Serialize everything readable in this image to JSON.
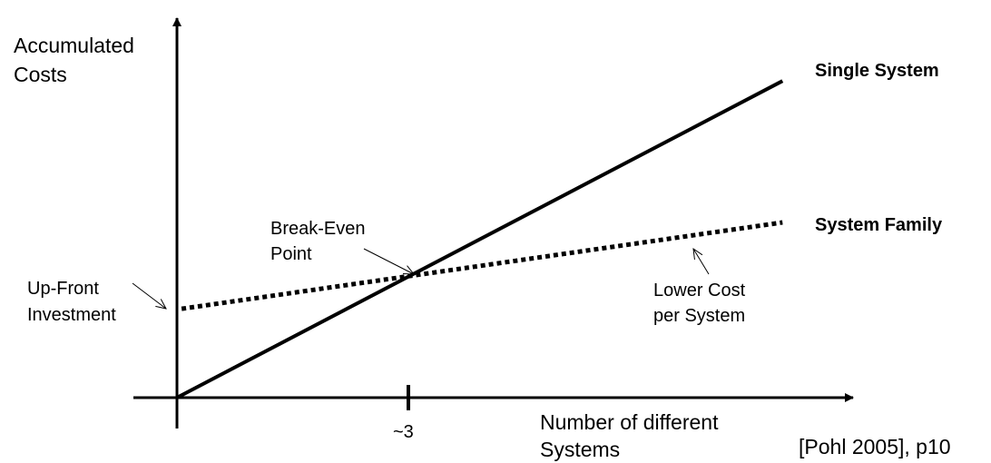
{
  "chart_data": {
    "type": "line",
    "title": "",
    "ylabel": "Accumulated Costs",
    "xlabel": "Number of different Systems",
    "x_ticks": [
      {
        "value": 3,
        "label": "~3"
      }
    ],
    "xlim": [
      -0.56,
      8.76
    ],
    "ylim": [
      0,
      9.2
    ],
    "grid": false,
    "series": [
      {
        "name": "Single System",
        "style": "solid",
        "x": [
          0,
          7.85
        ],
        "y": [
          0,
          7.7
        ],
        "color": "#000000"
      },
      {
        "name": "System Family",
        "style": "dotted",
        "x": [
          0.06,
          7.85
        ],
        "y": [
          2.16,
          4.26
        ],
        "color": "#000000"
      }
    ],
    "annotations": [
      {
        "text": [
          "Break-Even",
          "Point"
        ],
        "target": [
          3,
          3
        ]
      },
      {
        "text": [
          "Up-Front",
          "Investment"
        ],
        "target": [
          -0.14,
          2.16
        ]
      },
      {
        "text": [
          "Lower Cost",
          "per System"
        ],
        "target": [
          6.7,
          3.6
        ]
      }
    ],
    "source": "[Pohl 2005], p10"
  }
}
